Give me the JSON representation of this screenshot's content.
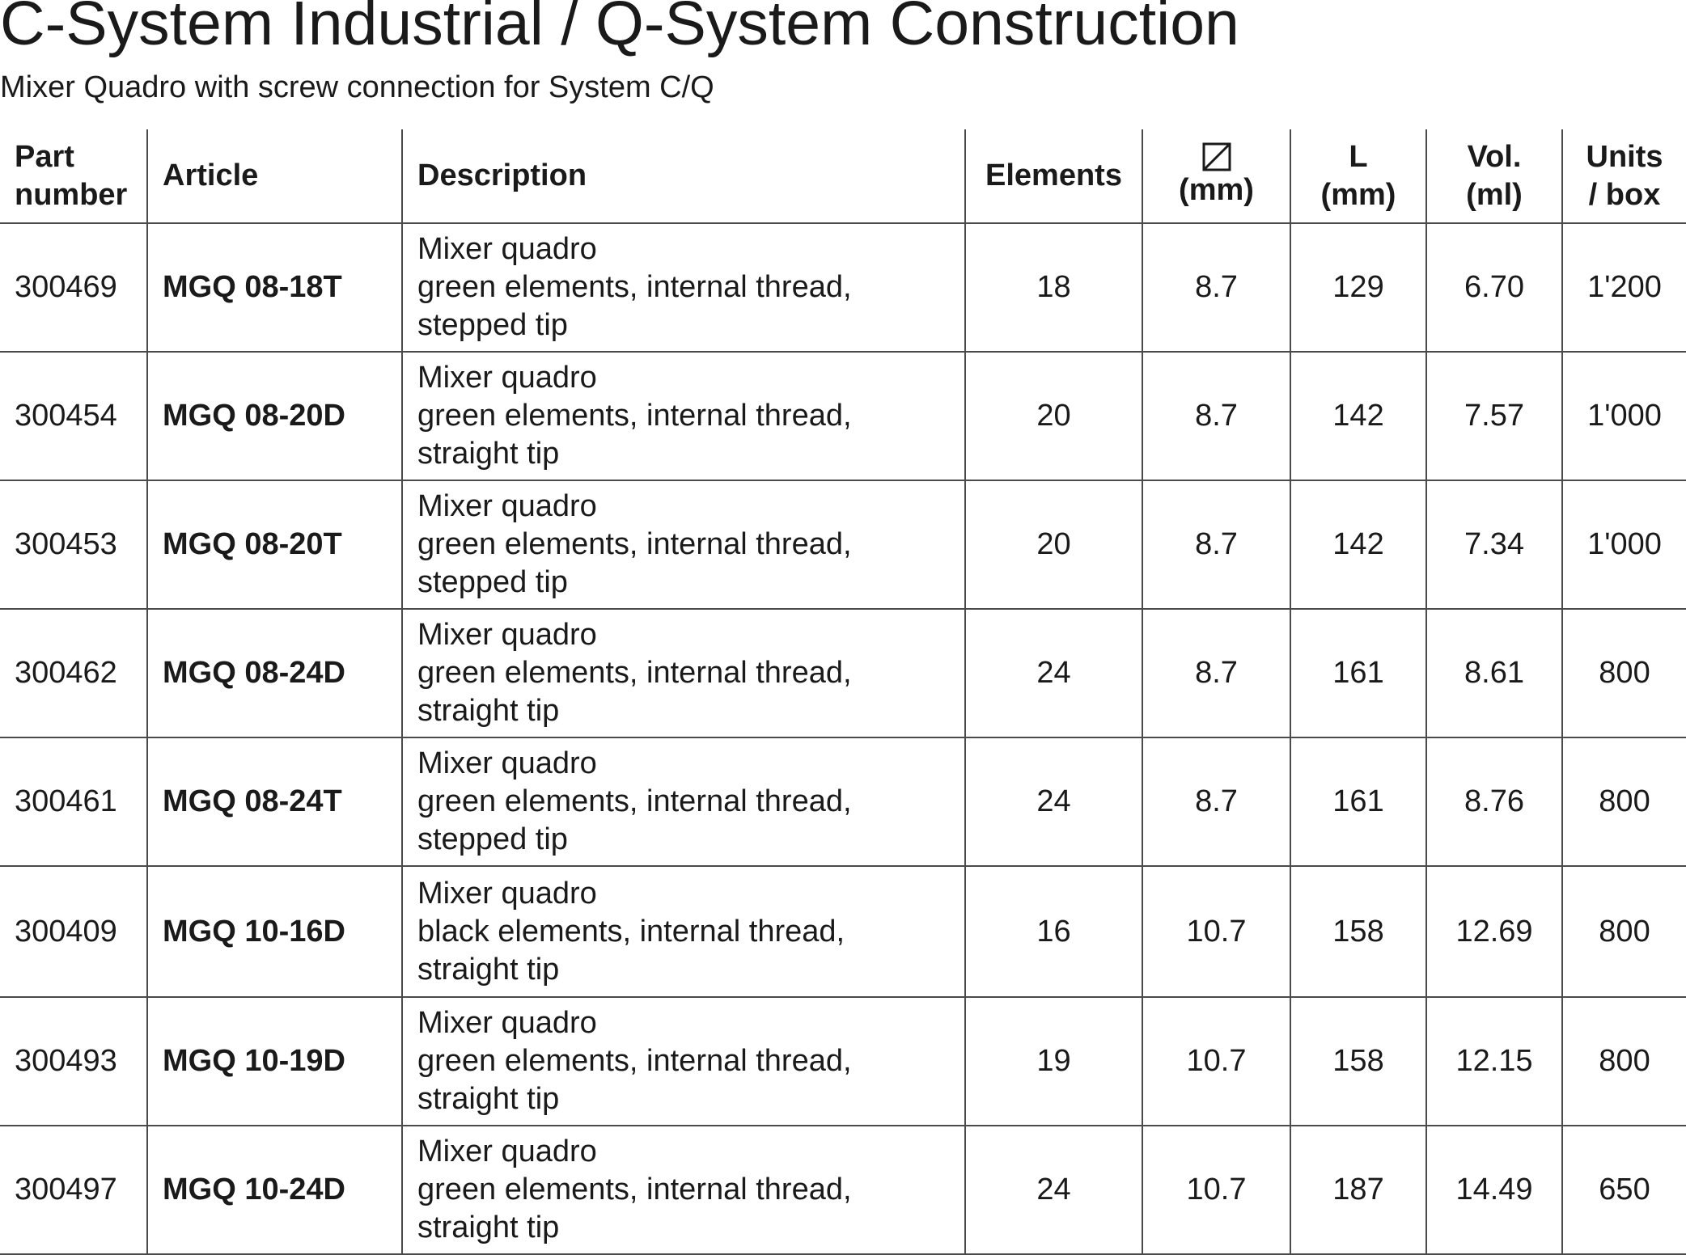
{
  "header": {
    "title": "C-System Industrial / Q-System Construction",
    "subtitle": "Mixer Quadro with screw connection for System C/Q"
  },
  "table": {
    "columns": {
      "part_number": [
        "Part",
        "number"
      ],
      "article": "Article",
      "description": "Description",
      "elements": "Elements",
      "diameter_icon": "square-diagonal-icon",
      "diameter_unit": "(mm)",
      "length": [
        "L",
        "(mm)"
      ],
      "volume": [
        "Vol.",
        "(ml)"
      ],
      "units_box": [
        "Units",
        "/ box"
      ]
    },
    "rows": [
      {
        "part_number": "300469",
        "article": "MGQ 08-18T",
        "description": [
          "Mixer quadro",
          "green elements, internal thread,",
          "stepped tip"
        ],
        "elements": "18",
        "diameter": "8.7",
        "length": "129",
        "volume": "6.70",
        "units_box": "1'200"
      },
      {
        "part_number": "300454",
        "article": "MGQ 08-20D",
        "description": [
          "Mixer quadro",
          "green elements, internal thread,",
          "straight tip"
        ],
        "elements": "20",
        "diameter": "8.7",
        "length": "142",
        "volume": "7.57",
        "units_box": "1'000"
      },
      {
        "part_number": "300453",
        "article": "MGQ 08-20T",
        "description": [
          "Mixer quadro",
          "green elements, internal thread,",
          "stepped tip"
        ],
        "elements": "20",
        "diameter": "8.7",
        "length": "142",
        "volume": "7.34",
        "units_box": "1'000"
      },
      {
        "part_number": "300462",
        "article": "MGQ 08-24D",
        "description": [
          "Mixer quadro",
          "green elements, internal thread,",
          "straight tip"
        ],
        "elements": "24",
        "diameter": "8.7",
        "length": "161",
        "volume": "8.61",
        "units_box": "800"
      },
      {
        "part_number": "300461",
        "article": "MGQ 08-24T",
        "description": [
          "Mixer quadro",
          "green elements, internal thread,",
          "stepped tip"
        ],
        "elements": "24",
        "diameter": "8.7",
        "length": "161",
        "volume": "8.76",
        "units_box": "800"
      },
      {
        "part_number": "300409",
        "article": "MGQ 10-16D",
        "description": [
          "Mixer quadro",
          "black elements, internal thread,",
          "straight tip"
        ],
        "elements": "16",
        "diameter": "10.7",
        "length": "158",
        "volume": "12.69",
        "units_box": "800"
      },
      {
        "part_number": "300493",
        "article": "MGQ 10-19D",
        "description": [
          "Mixer quadro",
          "green elements, internal thread,",
          "straight tip"
        ],
        "elements": "19",
        "diameter": "10.7",
        "length": "158",
        "volume": "12.15",
        "units_box": "800"
      },
      {
        "part_number": "300497",
        "article": "MGQ 10-24D",
        "description": [
          "Mixer quadro",
          "green elements, internal thread,",
          "straight tip"
        ],
        "elements": "24",
        "diameter": "10.7",
        "length": "187",
        "volume": "14.49",
        "units_box": "650"
      }
    ]
  }
}
